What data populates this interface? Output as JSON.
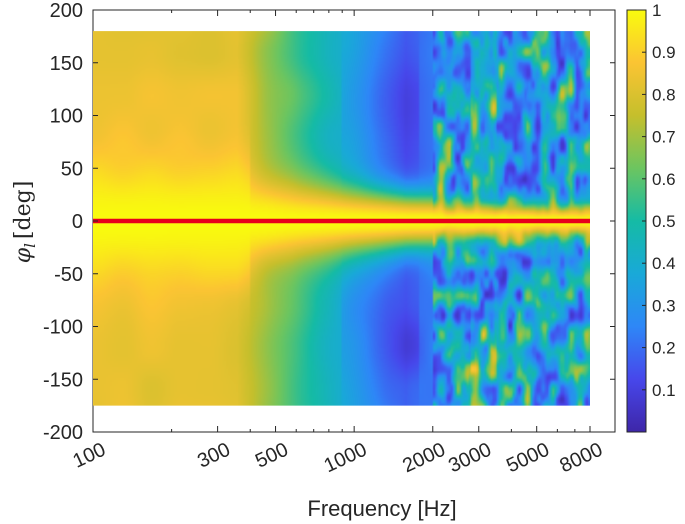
{
  "chart_data": {
    "type": "heatmap",
    "title": "",
    "xlabel": "Frequency [Hz]",
    "ylabel": "φ_l [deg]",
    "ylabel_symbol": "φ",
    "ylabel_sub": "l",
    "ylabel_unit": "[deg]",
    "x_scale": "log",
    "xlim": [
      100,
      9000
    ],
    "ylim": [
      -200,
      200
    ],
    "x_ticks": [
      100,
      300,
      500,
      1000,
      2000,
      3000,
      5000,
      8000
    ],
    "x_tick_labels": [
      "100",
      "300",
      "500",
      "1000",
      "2000",
      "3000",
      "5000",
      "8000"
    ],
    "y_ticks": [
      200,
      150,
      100,
      50,
      0,
      -50,
      -100,
      -150,
      -200
    ],
    "y_tick_labels": [
      "200",
      "150",
      "100",
      "50",
      "0",
      "-50",
      "-100",
      "-150",
      "-200"
    ],
    "data_extent": {
      "x": [
        100,
        8000
      ],
      "y": [
        -175,
        180
      ]
    },
    "colormap": "parula",
    "colorbar": {
      "range": [
        0,
        1
      ],
      "ticks": [
        1,
        0.9,
        0.8,
        0.7,
        0.6,
        0.5,
        0.4,
        0.3,
        0.2,
        0.1
      ],
      "tick_labels": [
        "1",
        "0.9",
        "0.8",
        "0.7",
        "0.6",
        "0.5",
        "0.4",
        "0.3",
        "0.2",
        "0.1"
      ]
    },
    "heatmap_grid_description": "coherence near 1 along phi=0 across all frequencies; values ~0.8 below 400 Hz at all angles; minima ~0.1-0.2 around 700-1500 Hz at |phi|>50; patchy mixture above 2000 Hz",
    "reference_line": {
      "y": 0,
      "x_range": [
        100,
        8000
      ],
      "color": "#e8001c"
    },
    "grid": false
  }
}
